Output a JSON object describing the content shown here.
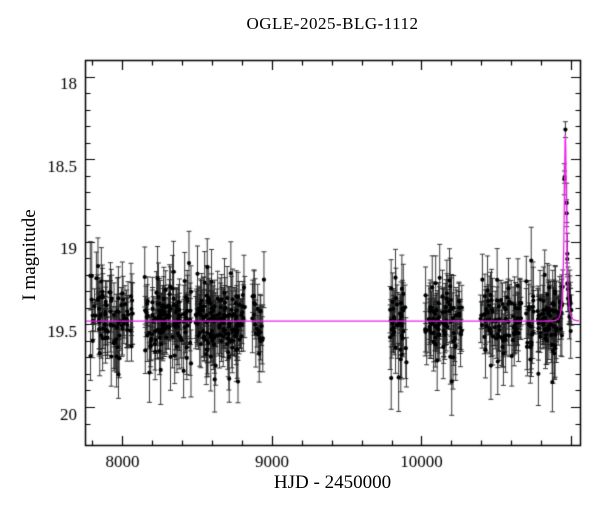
{
  "figure": {
    "title": "OGLE-2025-BLG-1112",
    "xlabel": "HJD - 2450000",
    "ylabel": "I magnitude"
  },
  "chart_data": {
    "type": "scatter",
    "title": "OGLE-2025-BLG-1112",
    "xlabel": "HJD - 2450000",
    "ylabel": "I magnitude",
    "xlim": [
      7750,
      11060
    ],
    "ylim_top": 17.85,
    "ylim_bottom": 20.18,
    "y_axis_inverted": true,
    "grid": false,
    "legend": "none",
    "x_major_ticks": [
      8000,
      9000,
      10000,
      11000
    ],
    "x_tick_labels": [
      "8000",
      "9000",
      "10000"
    ],
    "x_labeled_ticks": [
      8000,
      9000,
      10000
    ],
    "x_minor_step": 200,
    "y_major_ticks": [
      18,
      18.5,
      19,
      19.5,
      20
    ],
    "y_tick_labels": [
      "18",
      "18.5",
      "19",
      "19.5",
      "20"
    ],
    "y_minor_step": 0.1,
    "baseline_mag": 19.43,
    "point_color": "#000000",
    "errorbar_color": "#222222",
    "model_color": "#ee22ee",
    "microlensing_model": {
      "t0": 10962,
      "tE": 15,
      "u0": 0.37,
      "peak_mag": 18.3
    },
    "noise_seed": 1112,
    "err_base": 0.08,
    "err_spread": 0.13,
    "scatter_factor": 0.75,
    "seasons": [
      {
        "x_start": 7780,
        "x_end": 8070,
        "n": 90
      },
      {
        "x_start": 8140,
        "x_end": 8460,
        "n": 130
      },
      {
        "x_start": 8490,
        "x_end": 8820,
        "n": 160
      },
      {
        "x_start": 8860,
        "x_end": 8950,
        "n": 22
      },
      {
        "x_start": 9790,
        "x_end": 9900,
        "n": 45
      },
      {
        "x_start": 10020,
        "x_end": 10270,
        "n": 90
      },
      {
        "x_start": 10390,
        "x_end": 10670,
        "n": 90
      },
      {
        "x_start": 10700,
        "x_end": 11005,
        "n": 115
      }
    ]
  }
}
